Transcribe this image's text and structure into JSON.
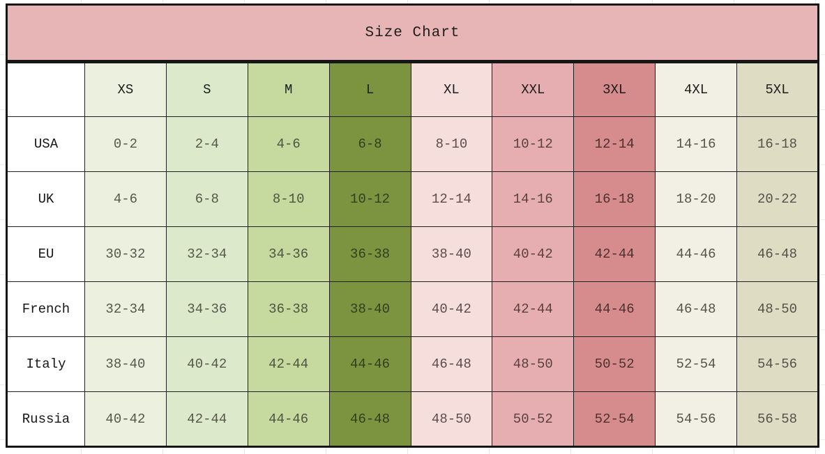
{
  "colors": {
    "banner_bg": "#e7b5b5",
    "border": "#161616",
    "label_bg": "#ffffff",
    "header_text": "#1c1c1c",
    "cell_text": "#56534a",
    "page_bg": "#ffffff",
    "gridline": "#e7e7e7"
  },
  "chart_data": {
    "type": "table",
    "title": "Size Chart",
    "row_header": "",
    "columns": [
      {
        "label": "XS",
        "bg": "#ecf1df",
        "text": "#57564c"
      },
      {
        "label": "S",
        "bg": "#dde9cb",
        "text": "#56584a"
      },
      {
        "label": "M",
        "bg": "#c6d99e",
        "text": "#4e5540"
      },
      {
        "label": "L",
        "bg": "#7c9440",
        "text": "#323f1c"
      },
      {
        "label": "XL",
        "bg": "#f6dedc",
        "text": "#5d4c4a"
      },
      {
        "label": "XXL",
        "bg": "#e7aeb2",
        "text": "#59403f"
      },
      {
        "label": "3XL",
        "bg": "#d68c8c",
        "text": "#4d302e"
      },
      {
        "label": "4XL",
        "bg": "#f2efe4",
        "text": "#55534a"
      },
      {
        "label": "5XL",
        "bg": "#dedcc3",
        "text": "#54524a"
      }
    ],
    "rows": [
      {
        "label": "USA",
        "values": [
          "0-2",
          "2-4",
          "4-6",
          "6-8",
          "8-10",
          "10-12",
          "12-14",
          "14-16",
          "16-18"
        ]
      },
      {
        "label": "UK",
        "values": [
          "4-6",
          "6-8",
          "8-10",
          "10-12",
          "12-14",
          "14-16",
          "16-18",
          "18-20",
          "20-22"
        ]
      },
      {
        "label": "EU",
        "values": [
          "30-32",
          "32-34",
          "34-36",
          "36-38",
          "38-40",
          "40-42",
          "42-44",
          "44-46",
          "46-48"
        ]
      },
      {
        "label": "French",
        "values": [
          "32-34",
          "34-36",
          "36-38",
          "38-40",
          "40-42",
          "42-44",
          "44-46",
          "46-48",
          "48-50"
        ]
      },
      {
        "label": "Italy",
        "values": [
          "38-40",
          "40-42",
          "42-44",
          "44-46",
          "46-48",
          "48-50",
          "50-52",
          "52-54",
          "54-56"
        ]
      },
      {
        "label": "Russia",
        "values": [
          "40-42",
          "42-44",
          "44-46",
          "46-48",
          "48-50",
          "50-52",
          "52-54",
          "54-56",
          "56-58"
        ]
      }
    ]
  }
}
